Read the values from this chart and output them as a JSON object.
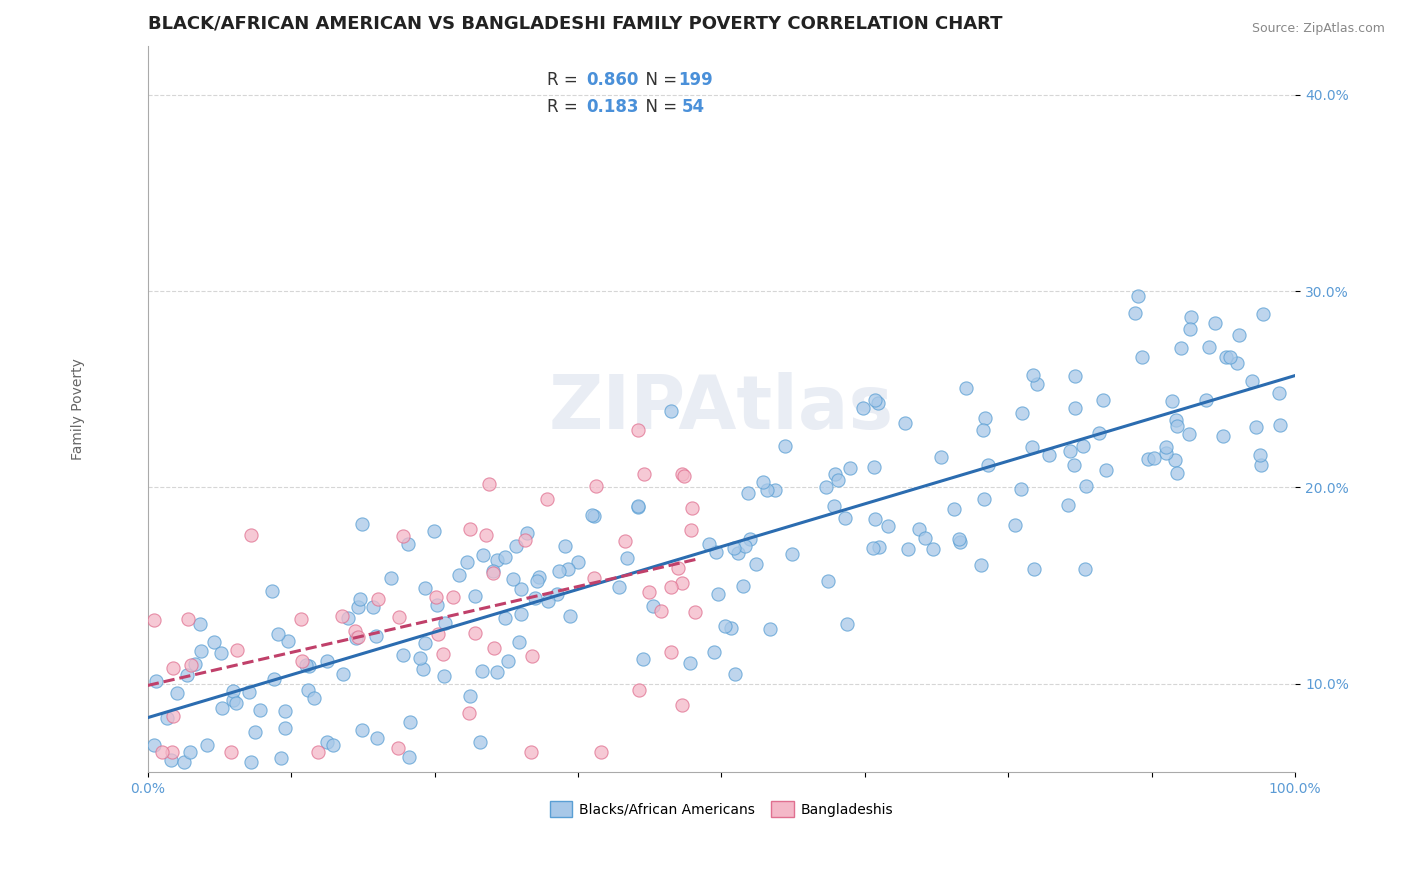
{
  "title": "BLACK/AFRICAN AMERICAN VS BANGLADESHI FAMILY POVERTY CORRELATION CHART",
  "source": "Source: ZipAtlas.com",
  "ylabel": "Family Poverty",
  "xlim": [
    0.0,
    1.0
  ],
  "ylim": [
    0.055,
    0.425
  ],
  "ytick_labels": [
    "10.0%",
    "20.0%",
    "30.0%",
    "40.0%"
  ],
  "ytick_values": [
    0.1,
    0.2,
    0.3,
    0.4
  ],
  "blue_color": "#a8c8e8",
  "blue_edge": "#5a9fd4",
  "pink_color": "#f4b8c8",
  "pink_edge": "#e07090",
  "blue_line_color": "#2b6cb0",
  "pink_line_color": "#c0406a",
  "legend_blue_label": "Blacks/African Americans",
  "legend_pink_label": "Bangladeshis",
  "r_blue": "0.860",
  "n_blue": "199",
  "r_pink": "0.183",
  "n_pink": "54",
  "watermark": "ZIPAtlas",
  "background_color": "#ffffff",
  "grid_color": "#cccccc",
  "title_fontsize": 13,
  "axis_label_fontsize": 10,
  "tick_color": "#5b9bd5",
  "legend_text_color": "#333333",
  "legend_value_color": "#4a90d9"
}
